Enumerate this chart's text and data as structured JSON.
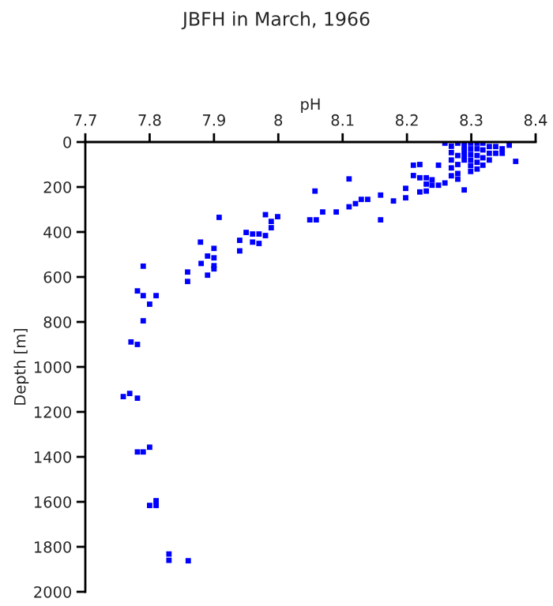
{
  "chart_data": {
    "type": "scatter",
    "title": "JBFH in March, 1966",
    "xlabel": "pH",
    "ylabel": "Depth [m]",
    "x": [
      7.79,
      7.771,
      7.781,
      7.759,
      7.769,
      7.781,
      7.781,
      7.79,
      7.8,
      7.8,
      7.81,
      7.81,
      7.83,
      7.83,
      7.86,
      7.908,
      7.879,
      7.89,
      7.9,
      7.88,
      7.9,
      7.9,
      7.9,
      7.89,
      7.859,
      7.859,
      7.79,
      7.781,
      7.79,
      7.81,
      7.8,
      7.94,
      7.94,
      7.95,
      7.96,
      7.96,
      7.97,
      7.97,
      7.98,
      7.98,
      7.989,
      7.989,
      7.999,
      8.049,
      8.057,
      8.059,
      8.069,
      8.09,
      8.11,
      8.11,
      8.12,
      8.129,
      8.139,
      8.159,
      8.159,
      8.179,
      8.198,
      8.198,
      8.21,
      8.22,
      8.21,
      8.22,
      8.23,
      8.22,
      8.23,
      8.23,
      8.239,
      8.239,
      8.249,
      8.249,
      8.259,
      8.259,
      8.269,
      8.269,
      8.269,
      8.269,
      8.269,
      8.279,
      8.279,
      8.279,
      8.279,
      8.279,
      8.289,
      8.289,
      8.289,
      8.289,
      8.289,
      8.289,
      8.299,
      8.299,
      8.299,
      8.299,
      8.299,
      8.299,
      8.309,
      8.309,
      8.309,
      8.309,
      8.309,
      8.318,
      8.318,
      8.318,
      8.318,
      8.328,
      8.328,
      8.328,
      8.338,
      8.338,
      8.348,
      8.348,
      8.359,
      8.369
    ],
    "series": [
      {
        "color": "#0000ff",
        "values": [
          795,
          889,
          900,
          1132,
          1118,
          1139,
          1378,
          1378,
          1357,
          1616,
          1595,
          1616,
          1832,
          1860,
          1862,
          335,
          445,
          507,
          473,
          540,
          515,
          550,
          564,
          592,
          578,
          620,
          552,
          662,
          683,
          683,
          721,
          437,
          484,
          402,
          445,
          409,
          409,
          451,
          416,
          323,
          353,
          381,
          332,
          346,
          218,
          346,
          311,
          311,
          288,
          164,
          274,
          255,
          255,
          236,
          346,
          262,
          206,
          248,
          103,
          100,
          149,
          159,
          159,
          222,
          218,
          187,
          168,
          192,
          192,
          103,
          182,
          5,
          19,
          47,
          80,
          115,
          150,
          5,
          60,
          100,
          140,
          165,
          0,
          20,
          40,
          60,
          80,
          213,
          5,
          30,
          55,
          80,
          105,
          131,
          5,
          30,
          60,
          90,
          120,
          5,
          35,
          70,
          103,
          20,
          50,
          80,
          20,
          50,
          30,
          50,
          14,
          86
        ]
      }
    ],
    "xlim": [
      7.7,
      8.4
    ],
    "xticks": [
      7.7,
      7.8,
      7.9,
      {
        "value": 8.0,
        "label": "8"
      },
      8.1,
      8.2,
      8.3,
      8.4
    ],
    "ylim": [
      2000,
      0
    ],
    "yticks": [
      0,
      200,
      400,
      600,
      800,
      1000,
      1200,
      1400,
      1600,
      1800,
      2000
    ],
    "marker": "square",
    "grid": false,
    "legend": false
  }
}
